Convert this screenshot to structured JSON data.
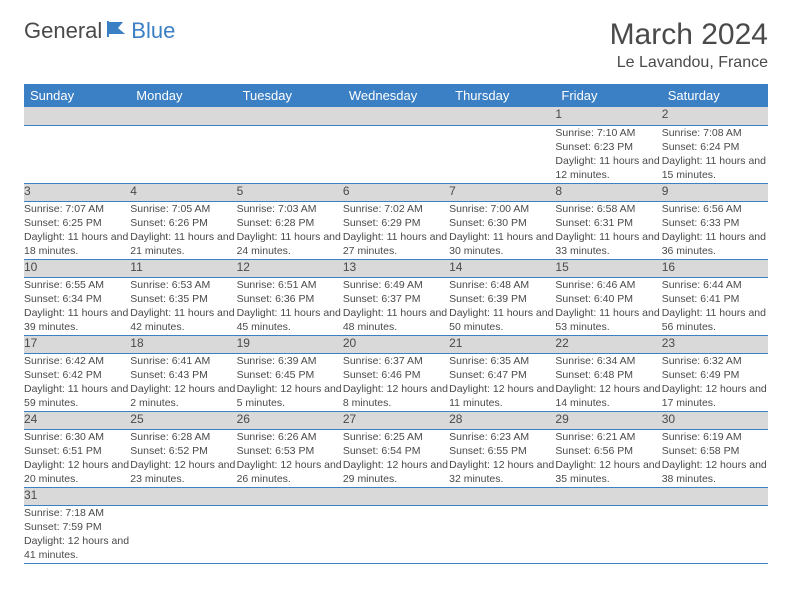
{
  "brand": {
    "part1": "General",
    "part2": "Blue"
  },
  "title": "March 2024",
  "location": "Le Lavandou, France",
  "colors": {
    "accent": "#3b7fc4",
    "header_text": "#ffffff",
    "daynum_bg": "#d9d9d9",
    "text": "#4a4a4a",
    "divider": "#3b7fc4",
    "background": "#ffffff"
  },
  "weekdays": [
    "Sunday",
    "Monday",
    "Tuesday",
    "Wednesday",
    "Thursday",
    "Friday",
    "Saturday"
  ],
  "weeks": [
    [
      null,
      null,
      null,
      null,
      null,
      {
        "n": "1",
        "sr": "Sunrise: 7:10 AM",
        "ss": "Sunset: 6:23 PM",
        "dl": "Daylight: 11 hours and 12 minutes."
      },
      {
        "n": "2",
        "sr": "Sunrise: 7:08 AM",
        "ss": "Sunset: 6:24 PM",
        "dl": "Daylight: 11 hours and 15 minutes."
      }
    ],
    [
      {
        "n": "3",
        "sr": "Sunrise: 7:07 AM",
        "ss": "Sunset: 6:25 PM",
        "dl": "Daylight: 11 hours and 18 minutes."
      },
      {
        "n": "4",
        "sr": "Sunrise: 7:05 AM",
        "ss": "Sunset: 6:26 PM",
        "dl": "Daylight: 11 hours and 21 minutes."
      },
      {
        "n": "5",
        "sr": "Sunrise: 7:03 AM",
        "ss": "Sunset: 6:28 PM",
        "dl": "Daylight: 11 hours and 24 minutes."
      },
      {
        "n": "6",
        "sr": "Sunrise: 7:02 AM",
        "ss": "Sunset: 6:29 PM",
        "dl": "Daylight: 11 hours and 27 minutes."
      },
      {
        "n": "7",
        "sr": "Sunrise: 7:00 AM",
        "ss": "Sunset: 6:30 PM",
        "dl": "Daylight: 11 hours and 30 minutes."
      },
      {
        "n": "8",
        "sr": "Sunrise: 6:58 AM",
        "ss": "Sunset: 6:31 PM",
        "dl": "Daylight: 11 hours and 33 minutes."
      },
      {
        "n": "9",
        "sr": "Sunrise: 6:56 AM",
        "ss": "Sunset: 6:33 PM",
        "dl": "Daylight: 11 hours and 36 minutes."
      }
    ],
    [
      {
        "n": "10",
        "sr": "Sunrise: 6:55 AM",
        "ss": "Sunset: 6:34 PM",
        "dl": "Daylight: 11 hours and 39 minutes."
      },
      {
        "n": "11",
        "sr": "Sunrise: 6:53 AM",
        "ss": "Sunset: 6:35 PM",
        "dl": "Daylight: 11 hours and 42 minutes."
      },
      {
        "n": "12",
        "sr": "Sunrise: 6:51 AM",
        "ss": "Sunset: 6:36 PM",
        "dl": "Daylight: 11 hours and 45 minutes."
      },
      {
        "n": "13",
        "sr": "Sunrise: 6:49 AM",
        "ss": "Sunset: 6:37 PM",
        "dl": "Daylight: 11 hours and 48 minutes."
      },
      {
        "n": "14",
        "sr": "Sunrise: 6:48 AM",
        "ss": "Sunset: 6:39 PM",
        "dl": "Daylight: 11 hours and 50 minutes."
      },
      {
        "n": "15",
        "sr": "Sunrise: 6:46 AM",
        "ss": "Sunset: 6:40 PM",
        "dl": "Daylight: 11 hours and 53 minutes."
      },
      {
        "n": "16",
        "sr": "Sunrise: 6:44 AM",
        "ss": "Sunset: 6:41 PM",
        "dl": "Daylight: 11 hours and 56 minutes."
      }
    ],
    [
      {
        "n": "17",
        "sr": "Sunrise: 6:42 AM",
        "ss": "Sunset: 6:42 PM",
        "dl": "Daylight: 11 hours and 59 minutes."
      },
      {
        "n": "18",
        "sr": "Sunrise: 6:41 AM",
        "ss": "Sunset: 6:43 PM",
        "dl": "Daylight: 12 hours and 2 minutes."
      },
      {
        "n": "19",
        "sr": "Sunrise: 6:39 AM",
        "ss": "Sunset: 6:45 PM",
        "dl": "Daylight: 12 hours and 5 minutes."
      },
      {
        "n": "20",
        "sr": "Sunrise: 6:37 AM",
        "ss": "Sunset: 6:46 PM",
        "dl": "Daylight: 12 hours and 8 minutes."
      },
      {
        "n": "21",
        "sr": "Sunrise: 6:35 AM",
        "ss": "Sunset: 6:47 PM",
        "dl": "Daylight: 12 hours and 11 minutes."
      },
      {
        "n": "22",
        "sr": "Sunrise: 6:34 AM",
        "ss": "Sunset: 6:48 PM",
        "dl": "Daylight: 12 hours and 14 minutes."
      },
      {
        "n": "23",
        "sr": "Sunrise: 6:32 AM",
        "ss": "Sunset: 6:49 PM",
        "dl": "Daylight: 12 hours and 17 minutes."
      }
    ],
    [
      {
        "n": "24",
        "sr": "Sunrise: 6:30 AM",
        "ss": "Sunset: 6:51 PM",
        "dl": "Daylight: 12 hours and 20 minutes."
      },
      {
        "n": "25",
        "sr": "Sunrise: 6:28 AM",
        "ss": "Sunset: 6:52 PM",
        "dl": "Daylight: 12 hours and 23 minutes."
      },
      {
        "n": "26",
        "sr": "Sunrise: 6:26 AM",
        "ss": "Sunset: 6:53 PM",
        "dl": "Daylight: 12 hours and 26 minutes."
      },
      {
        "n": "27",
        "sr": "Sunrise: 6:25 AM",
        "ss": "Sunset: 6:54 PM",
        "dl": "Daylight: 12 hours and 29 minutes."
      },
      {
        "n": "28",
        "sr": "Sunrise: 6:23 AM",
        "ss": "Sunset: 6:55 PM",
        "dl": "Daylight: 12 hours and 32 minutes."
      },
      {
        "n": "29",
        "sr": "Sunrise: 6:21 AM",
        "ss": "Sunset: 6:56 PM",
        "dl": "Daylight: 12 hours and 35 minutes."
      },
      {
        "n": "30",
        "sr": "Sunrise: 6:19 AM",
        "ss": "Sunset: 6:58 PM",
        "dl": "Daylight: 12 hours and 38 minutes."
      }
    ],
    [
      {
        "n": "31",
        "sr": "Sunrise: 7:18 AM",
        "ss": "Sunset: 7:59 PM",
        "dl": "Daylight: 12 hours and 41 minutes."
      },
      null,
      null,
      null,
      null,
      null,
      null
    ]
  ]
}
